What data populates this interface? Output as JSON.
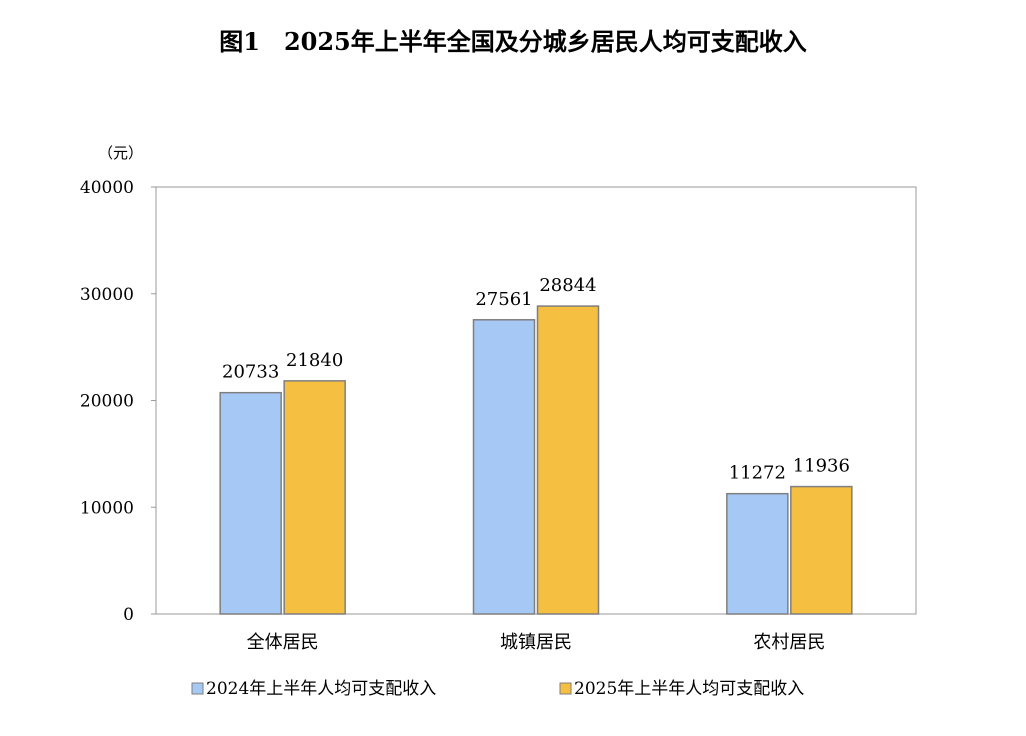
{
  "chart_data": {
    "type": "bar",
    "title": "图1　2025年上半年全国及分城乡居民人均可支配收入",
    "ylabel": "（元）",
    "xlabel": "",
    "categories": [
      "全体居民",
      "城镇居民",
      "农村居民"
    ],
    "series": [
      {
        "name": "2024年上半年人均可支配收入",
        "values": [
          20733,
          27561,
          11272
        ],
        "color": "#A6C8F5"
      },
      {
        "name": "2025年上半年人均可支配收入",
        "values": [
          21840,
          28844,
          11936
        ],
        "color": "#F5BF42"
      }
    ],
    "ylim": [
      0,
      40000
    ],
    "yticks": [
      0,
      10000,
      20000,
      30000,
      40000
    ],
    "grid": false,
    "legend_position": "bottom"
  }
}
